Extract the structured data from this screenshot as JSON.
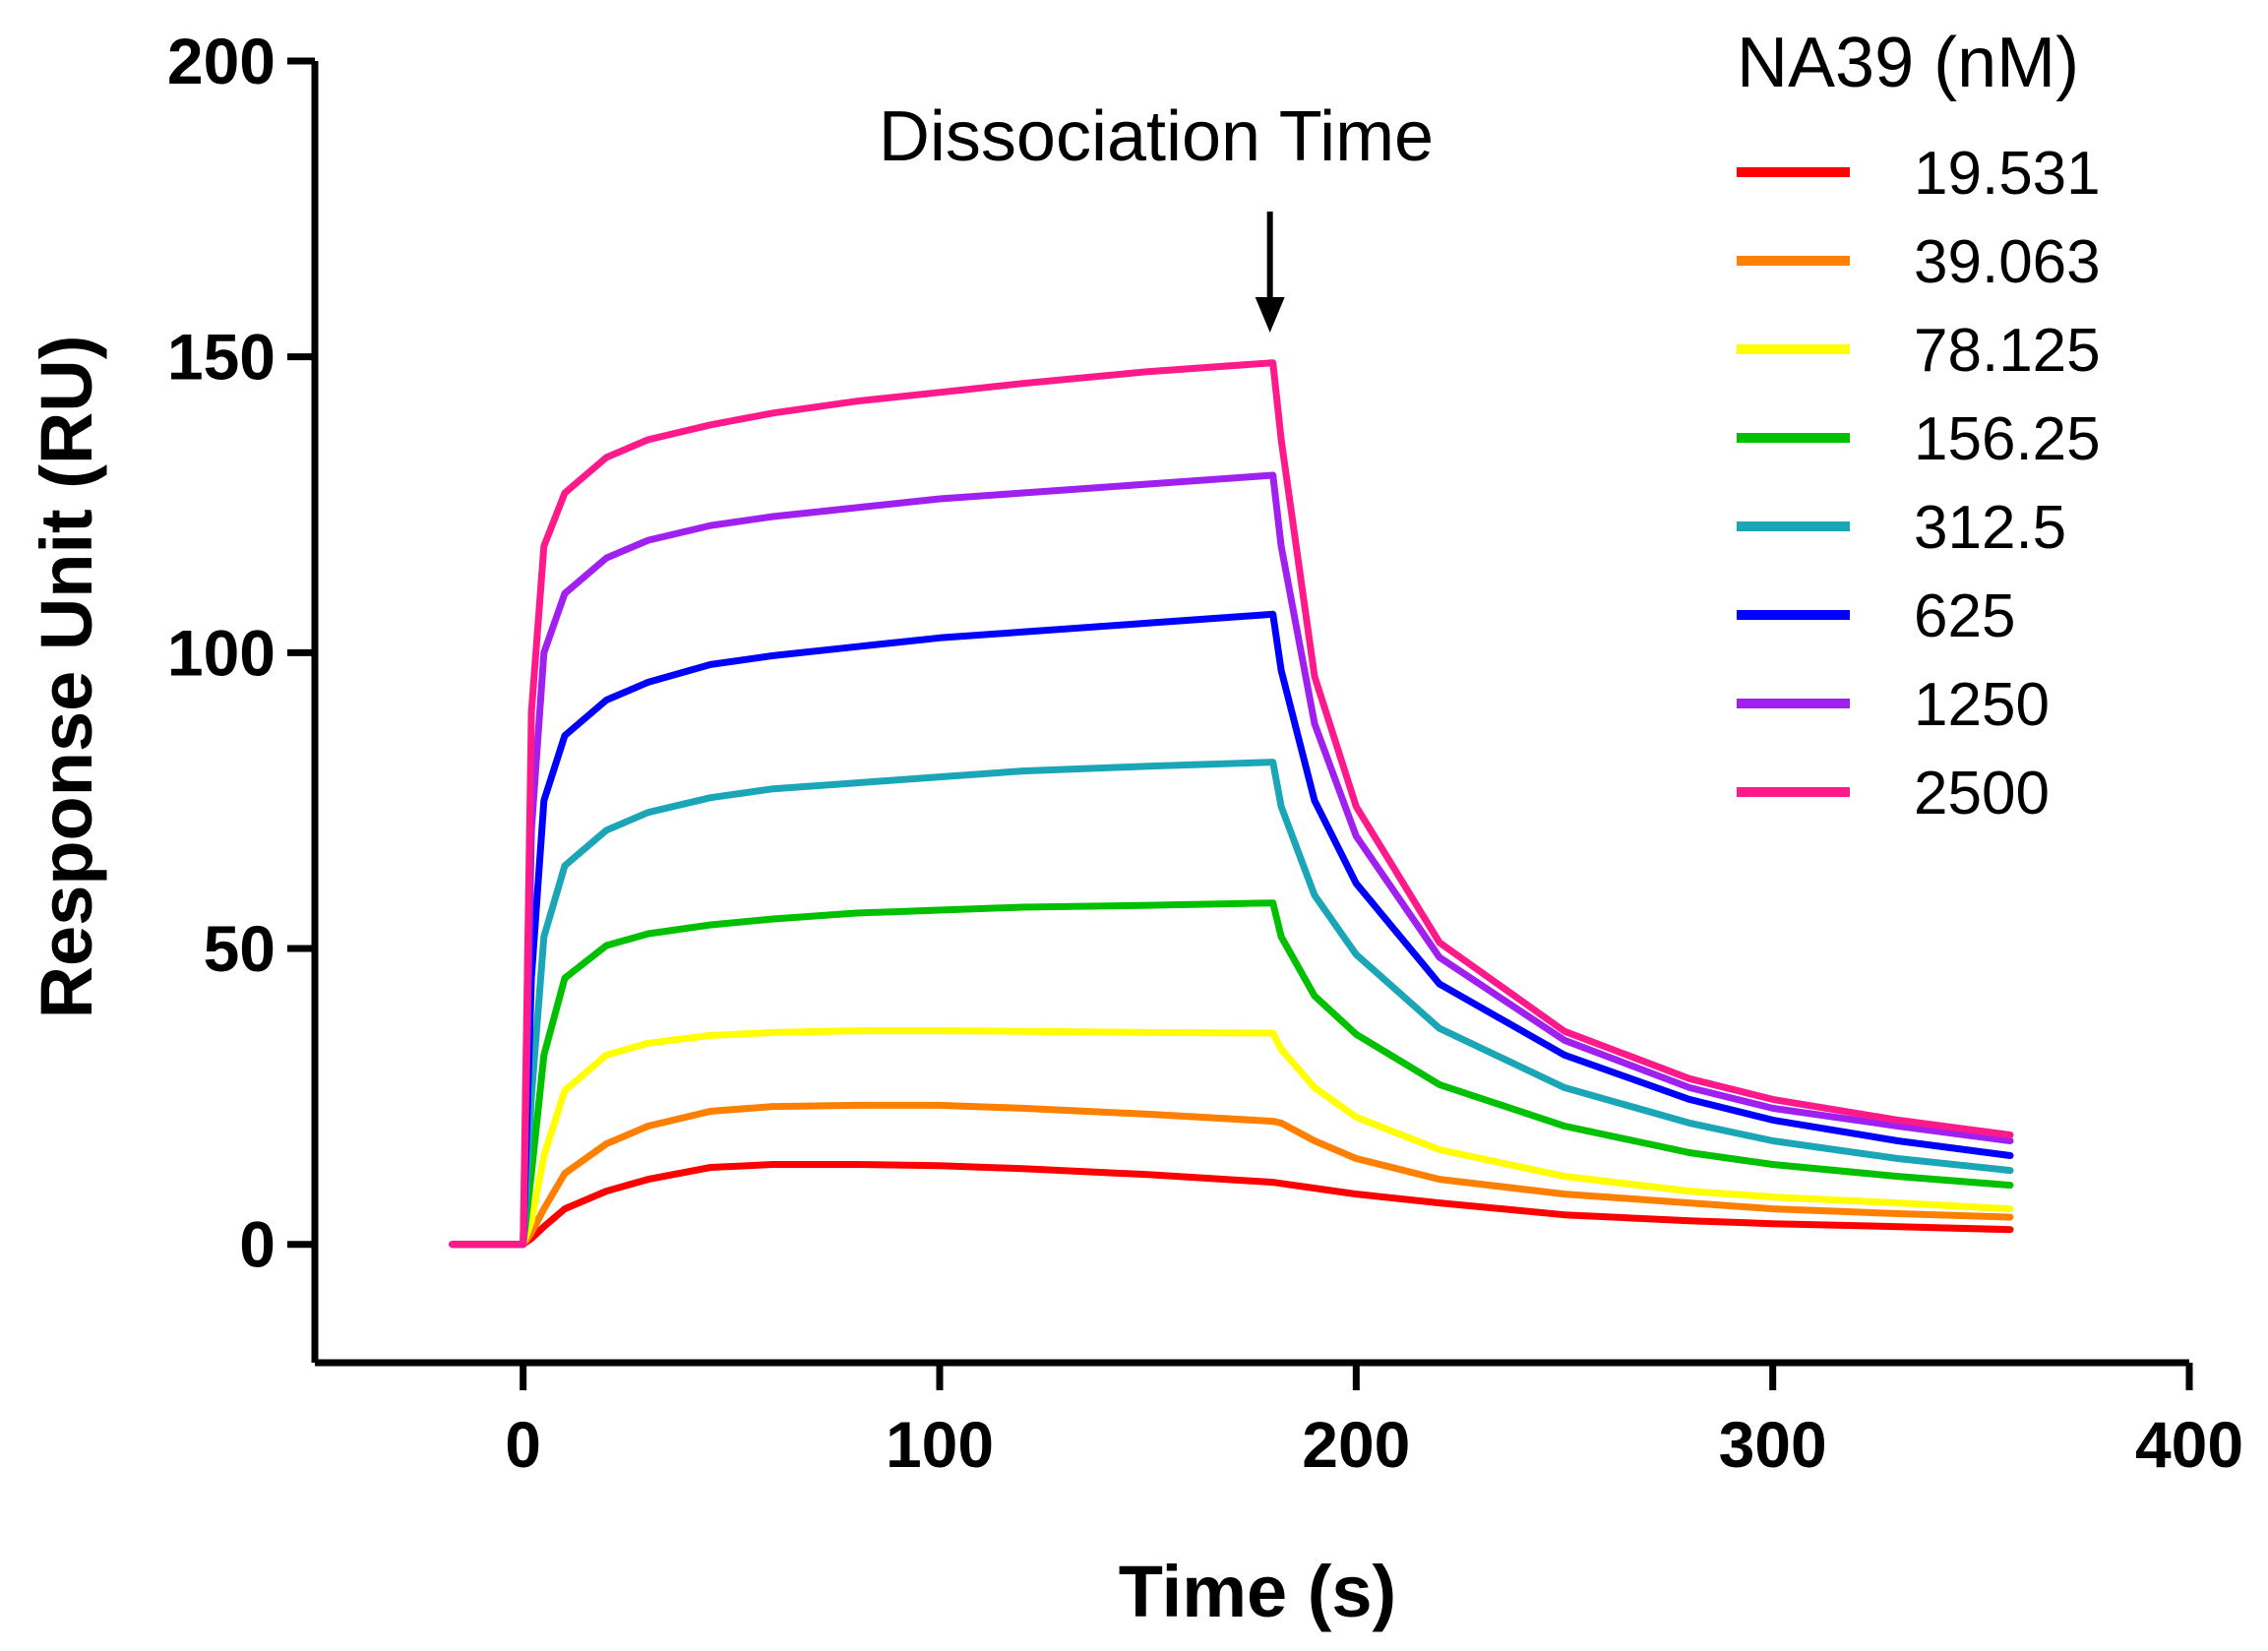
{
  "chart_data": {
    "type": "line",
    "title": "",
    "xlabel": "Time (s)",
    "ylabel": "Response Unit (RU)",
    "xlim": [
      -50,
      400
    ],
    "ylim": [
      -20,
      200
    ],
    "xticks": [
      0,
      100,
      200,
      300,
      400
    ],
    "yticks": [
      0,
      50,
      100,
      150,
      200
    ],
    "legend_title": "NA39 (nM)",
    "legend_position": "top-right",
    "annotation": {
      "text": "Dissociation Time",
      "x": 180
    },
    "x": [
      -17,
      0,
      2,
      5,
      10,
      20,
      30,
      45,
      60,
      80,
      100,
      120,
      150,
      180,
      182,
      190,
      200,
      220,
      250,
      280,
      300,
      330,
      357
    ],
    "series": [
      {
        "name": "19.531",
        "color": "#ff0000",
        "values": [
          0,
          0,
          1,
          3,
          6,
          9,
          11,
          13,
          13.5,
          13.5,
          13.3,
          12.8,
          11.8,
          10.5,
          10.3,
          9.5,
          8.5,
          7,
          5,
          4,
          3.5,
          3,
          2.5
        ]
      },
      {
        "name": "39.063",
        "color": "#ff8000",
        "values": [
          0,
          0,
          2,
          6,
          12,
          17,
          20,
          22.5,
          23.3,
          23.5,
          23.5,
          23,
          22,
          20.8,
          20.5,
          17.5,
          14.5,
          11,
          8.5,
          7,
          6,
          5.2,
          4.6
        ]
      },
      {
        "name": "78.125",
        "color": "#ffff00",
        "values": [
          0,
          0,
          4,
          15,
          26,
          32,
          34,
          35.3,
          35.8,
          36.1,
          36.1,
          36,
          35.8,
          35.7,
          33,
          26.5,
          21.5,
          16,
          11.5,
          9,
          8,
          7,
          6
        ]
      },
      {
        "name": "156.25",
        "color": "#00c000",
        "values": [
          0,
          0,
          12,
          32,
          45,
          50.5,
          52.5,
          54,
          55,
          56,
          56.5,
          57,
          57.3,
          57.7,
          52,
          42,
          35.5,
          27,
          20,
          15.5,
          13.5,
          11.5,
          10
        ]
      },
      {
        "name": "312.5",
        "color": "#1aa6b7",
        "values": [
          0,
          0,
          25,
          52,
          64,
          70,
          73,
          75.5,
          77,
          78,
          79,
          80,
          80.8,
          81.5,
          74,
          59,
          49,
          36.5,
          26.5,
          20.5,
          17.5,
          14.5,
          12.5
        ]
      },
      {
        "name": "625",
        "color": "#0000ff",
        "values": [
          0,
          0,
          45,
          75,
          86,
          92,
          95,
          98,
          99.5,
          101,
          102.5,
          103.5,
          105,
          106.5,
          97,
          75,
          61,
          44,
          32,
          24.5,
          21,
          17.5,
          15
        ]
      },
      {
        "name": "1250",
        "color": "#a020f0",
        "values": [
          0,
          0,
          70,
          100,
          110,
          116,
          119,
          121.5,
          123,
          124.5,
          126,
          127,
          128.5,
          130,
          118,
          88,
          69,
          48.5,
          34.5,
          26.5,
          23,
          20,
          17.5
        ]
      },
      {
        "name": "2500",
        "color": "#ff1a8c",
        "values": [
          0,
          0,
          90,
          118,
          127,
          133,
          136,
          138.5,
          140.5,
          142.5,
          144,
          145.5,
          147.5,
          149,
          136,
          96,
          74,
          51,
          36,
          28,
          24.5,
          21,
          18.5
        ]
      }
    ]
  }
}
